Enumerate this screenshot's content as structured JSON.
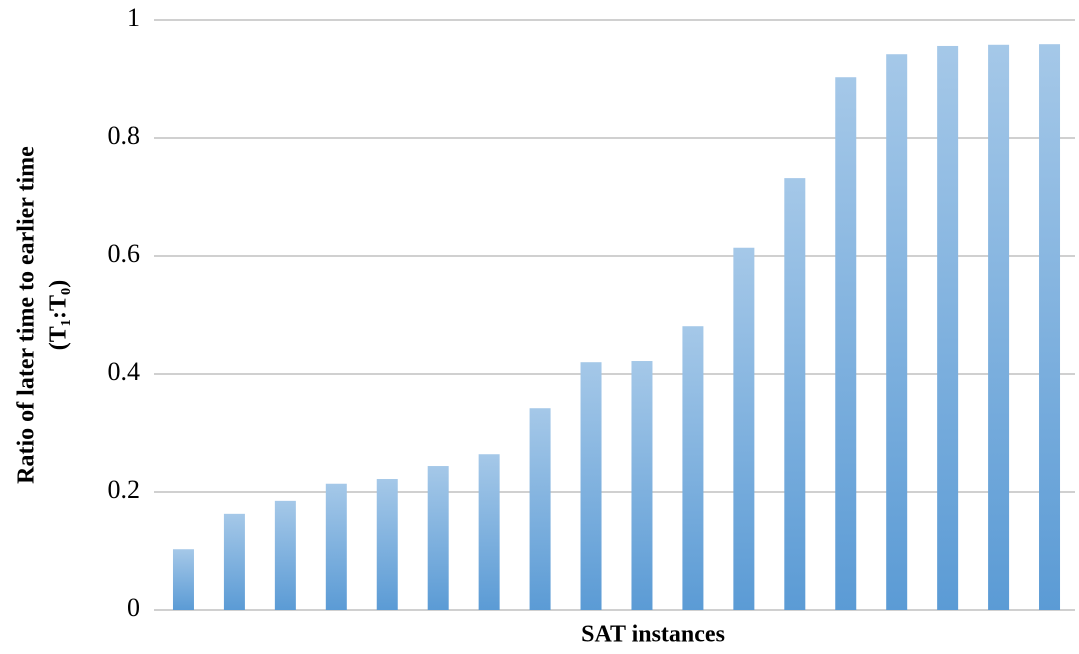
{
  "chart_data": {
    "type": "bar",
    "ylabel": [
      "Ratio of later time to earlier time",
      "(T₁:T₀)"
    ],
    "xlabel": "SAT instances",
    "categories": [
      null,
      null,
      null,
      null,
      null,
      null,
      null,
      null,
      null,
      null,
      null,
      null,
      null,
      null,
      null,
      null,
      null,
      null
    ],
    "values": [
      0.103,
      0.163,
      0.185,
      0.214,
      0.222,
      0.244,
      0.264,
      0.342,
      0.42,
      0.422,
      0.481,
      0.614,
      0.732,
      0.903,
      0.942,
      0.956,
      0.958,
      0.959
    ],
    "color": "#5b9bd5",
    "ylim": [
      0,
      1
    ],
    "yticks": [
      0,
      0.2,
      0.4,
      0.6,
      0.8,
      1
    ],
    "grid": true
  }
}
